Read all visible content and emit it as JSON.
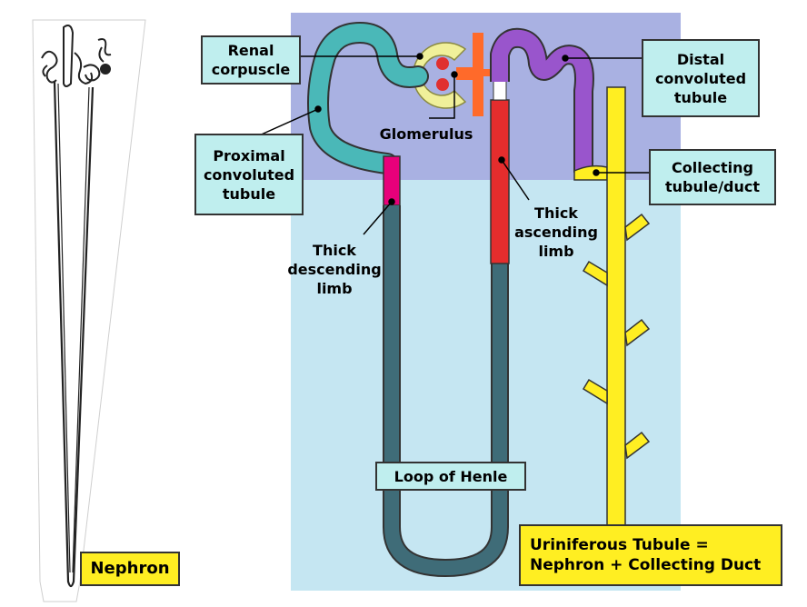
{
  "labels": {
    "renal_corpuscle": [
      "Renal",
      "corpuscle"
    ],
    "distal_convoluted_tubule": [
      "Distal",
      "convoluted",
      "tubule"
    ],
    "glomerulus": "Glomerulus",
    "proximal_convoluted_tubule": [
      "Proximal",
      "convoluted",
      "tubule"
    ],
    "collecting_tubule_duct": [
      "Collecting",
      "tubule/duct"
    ],
    "thick_descending_limb": [
      "Thick",
      "descending",
      "limb"
    ],
    "thick_ascending_limb": [
      "Thick",
      "ascending",
      "limb"
    ],
    "loop_of_henle": "Loop of Henle",
    "nephron": "Nephron",
    "uriniferous_tubule": [
      "Uriniferous Tubule =",
      "Nephron + Collecting Duct"
    ]
  },
  "colors": {
    "cortex": "#a9b1e2",
    "medulla": "#c5e6f2",
    "proximal": "#4ab8b8",
    "descending_thick": "#e8007a",
    "loop": "#3f6c78",
    "ascending_thick": "#e52d2d",
    "distal": "#9955cc",
    "collecting": "#ffee22",
    "capsule": "#f0f09a",
    "glomerulus": "#e03030",
    "arteriole": "#ff6a2a",
    "label_box": "#bfeeee"
  }
}
